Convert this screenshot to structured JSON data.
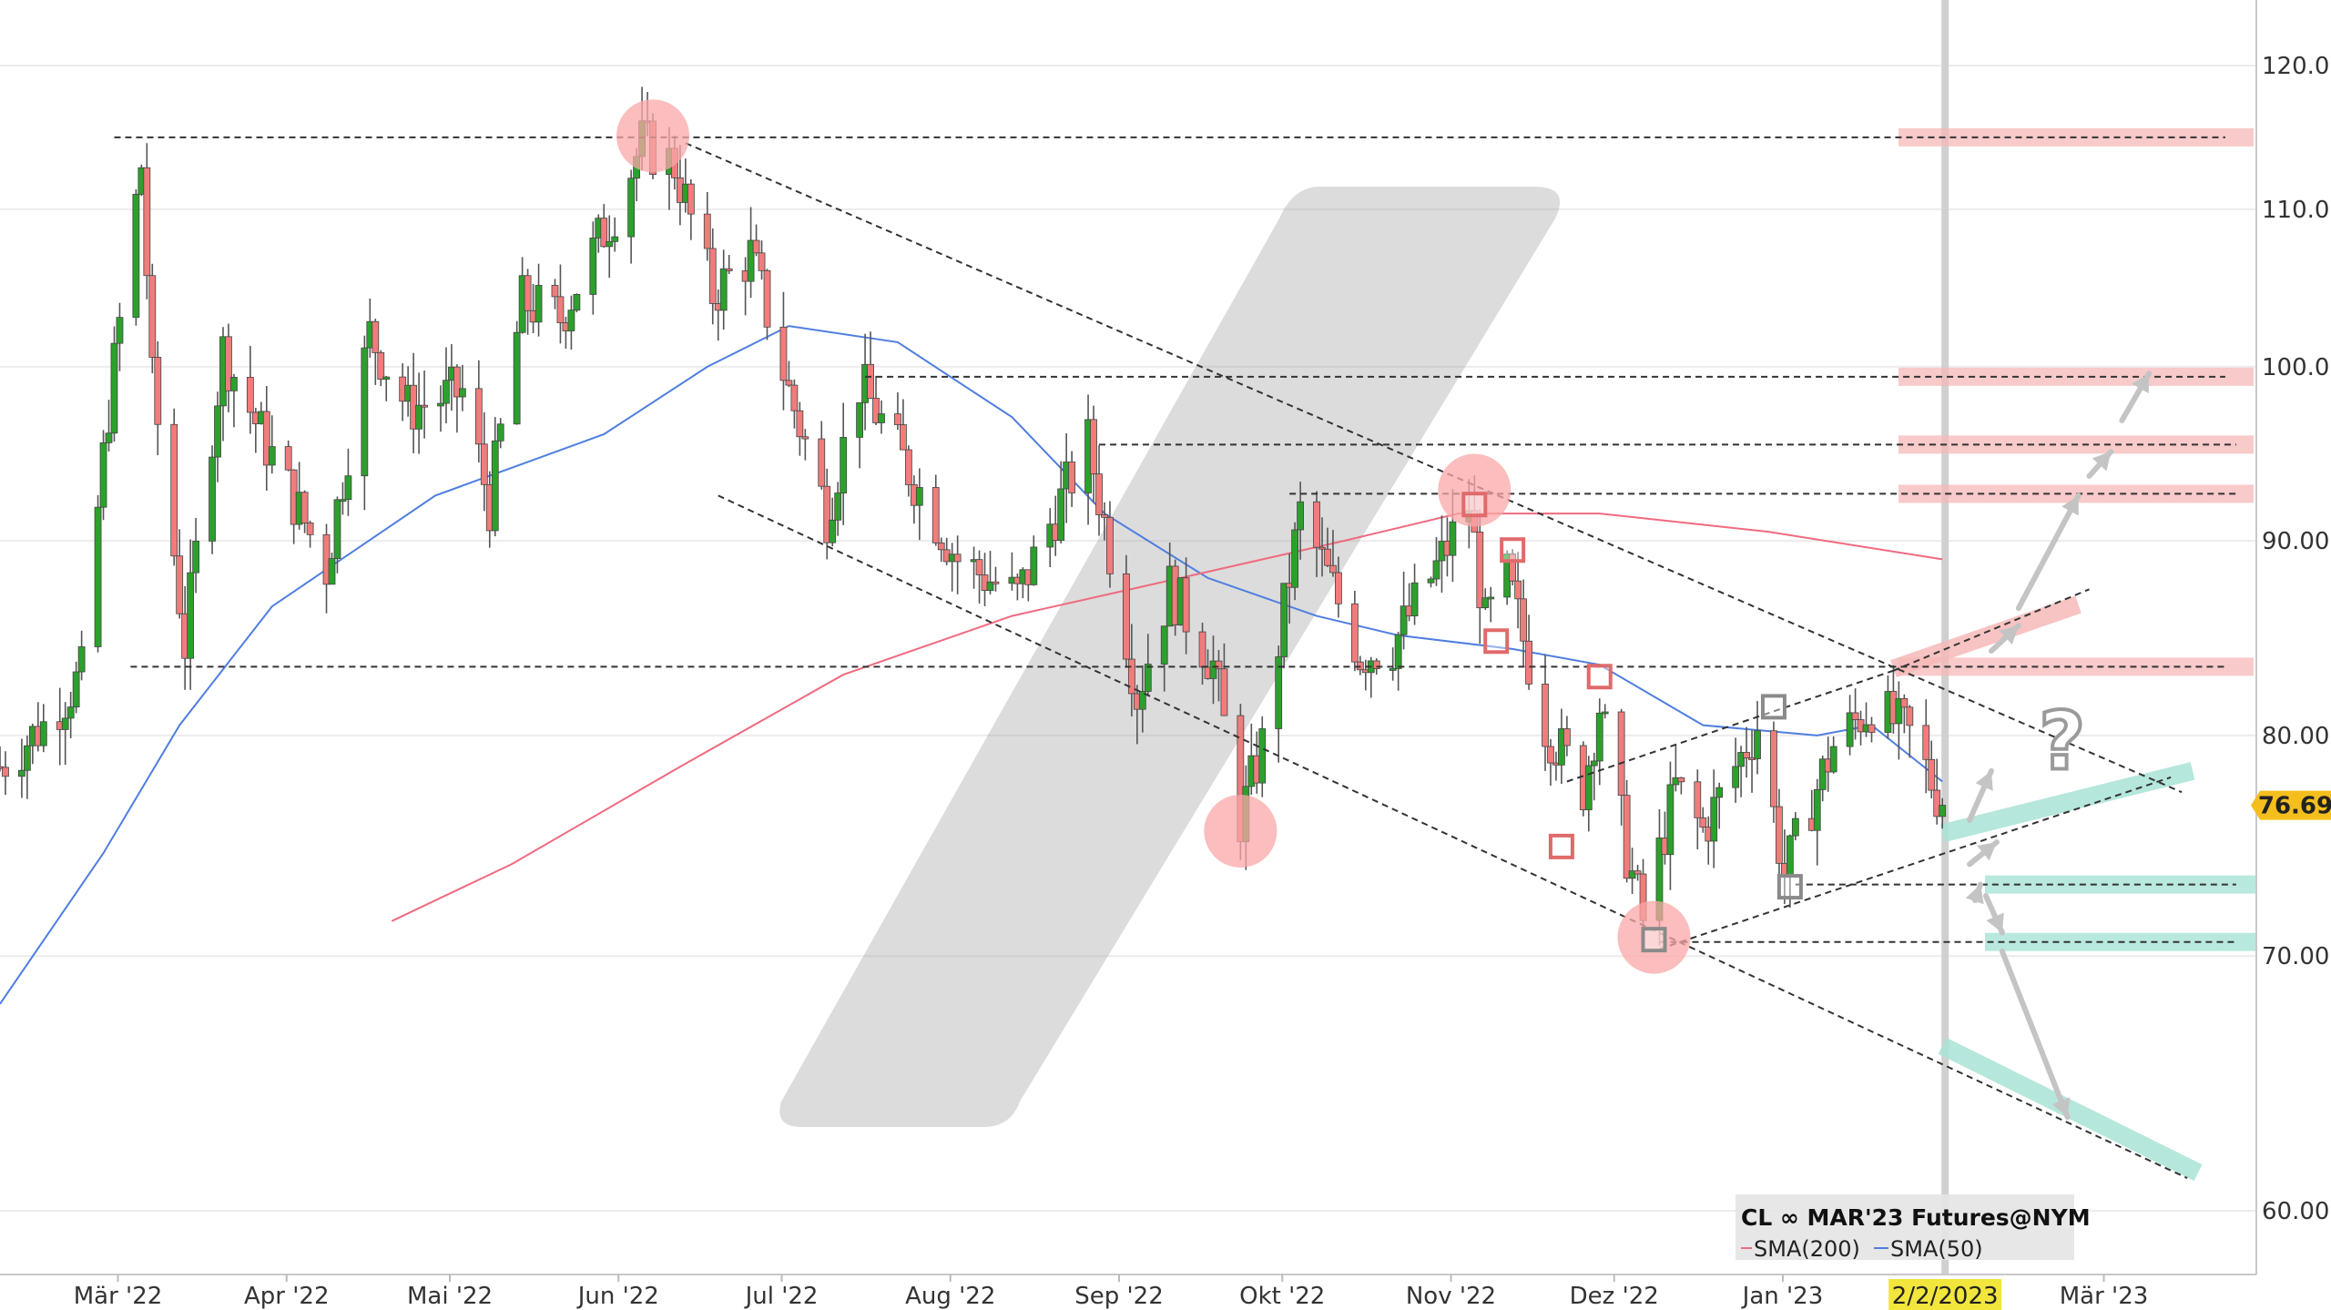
{
  "chart_data": {
    "type": "candlestick",
    "instrument": "CL ∞ MAR'23 Futures@NYM",
    "y_scale": "log",
    "ylim": [
      57.5,
      125
    ],
    "y_ticks": [
      {
        "value": 120,
        "label": "120.00"
      },
      {
        "value": 110,
        "label": "110.00"
      },
      {
        "value": 100,
        "label": "100.00"
      },
      {
        "value": 90,
        "label": "90.00"
      },
      {
        "value": 80,
        "label": "80.00"
      },
      {
        "value": 70,
        "label": "70.00"
      },
      {
        "value": 60,
        "label": "60.00"
      }
    ],
    "x_ticks": [
      "Mär '22",
      "Apr '22",
      "Mai '22",
      "Jun '22",
      "Jul '22",
      "Aug '22",
      "Sep '22",
      "Okt '22",
      "Nov '22",
      "Dez '22",
      "Jan '23",
      "Mär '23"
    ],
    "x_range": [
      "2022-02-10",
      "2023-03-22"
    ],
    "current_date": {
      "date": "2023-02-02",
      "label": "2/2/2023",
      "highlight_color": "#f2e63c"
    },
    "last_price": {
      "value": 76.69,
      "label": "76.69",
      "color": "#f4bf1d"
    },
    "colors": {
      "up": "#2ca02c",
      "down": "#f07c7c",
      "sma200": "#f06a80",
      "sma50": "#4f7ee0",
      "resistance_zone": "#f6b8b8",
      "support_zone": "#a8e3d6",
      "pivot": "#f9a7a7"
    },
    "legend": {
      "items": [
        {
          "name": "SMA(200)",
          "color": "#f06a80"
        },
        {
          "name": "SMA(50)",
          "color": "#4f7ee0"
        }
      ]
    },
    "anchors": [
      [
        "2022-02-10",
        78.5
      ],
      [
        "2022-02-18",
        80.5
      ],
      [
        "2022-02-25",
        83.0
      ],
      [
        "2022-03-02",
        97.5
      ],
      [
        "2022-03-08",
        113.0
      ],
      [
        "2022-03-10",
        99.0
      ],
      [
        "2022-03-16",
        84.5
      ],
      [
        "2022-03-23",
        101.0
      ],
      [
        "2022-03-30",
        96.0
      ],
      [
        "2022-04-11",
        88.5
      ],
      [
        "2022-04-19",
        102.0
      ],
      [
        "2022-04-26",
        97.5
      ],
      [
        "2022-05-06",
        98.5
      ],
      [
        "2022-05-11",
        92.0
      ],
      [
        "2022-05-17",
        104.0
      ],
      [
        "2022-05-24",
        103.0
      ],
      [
        "2022-06-03",
        110.0
      ],
      [
        "2022-06-08",
        114.5
      ],
      [
        "2022-06-14",
        113.0
      ],
      [
        "2022-06-21",
        104.5
      ],
      [
        "2022-06-28",
        107.0
      ],
      [
        "2022-07-05",
        98.5
      ],
      [
        "2022-07-12",
        91.5
      ],
      [
        "2022-07-18",
        99.0
      ],
      [
        "2022-07-26",
        94.5
      ],
      [
        "2022-08-05",
        89.0
      ],
      [
        "2022-08-16",
        87.0
      ],
      [
        "2022-08-29",
        95.5
      ],
      [
        "2022-09-07",
        82.0
      ],
      [
        "2022-09-13",
        87.5
      ],
      [
        "2022-09-21",
        83.5
      ],
      [
        "2022-09-26",
        76.0
      ],
      [
        "2022-09-30",
        79.5
      ],
      [
        "2022-10-07",
        91.5
      ],
      [
        "2022-10-18",
        84.0
      ],
      [
        "2022-10-24",
        84.5
      ],
      [
        "2022-11-01",
        88.5
      ],
      [
        "2022-11-07",
        92.0
      ],
      [
        "2022-11-10",
        85.5
      ],
      [
        "2022-11-14",
        88.0
      ],
      [
        "2022-11-21",
        80.5
      ],
      [
        "2022-11-28",
        77.5
      ],
      [
        "2022-12-01",
        81.5
      ],
      [
        "2022-12-06",
        74.5
      ],
      [
        "2022-12-09",
        71.5
      ],
      [
        "2022-12-15",
        77.5
      ],
      [
        "2022-12-20",
        75.5
      ],
      [
        "2022-12-30",
        80.5
      ],
      [
        "2023-01-04",
        73.5
      ],
      [
        "2023-01-13",
        79.5
      ],
      [
        "2023-01-20",
        81.5
      ],
      [
        "2023-01-27",
        80.0
      ],
      [
        "2023-02-02",
        76.7
      ]
    ],
    "sma50": [
      [
        "2022-02-10",
        68.0
      ],
      [
        "2022-03-01",
        74.5
      ],
      [
        "2022-03-15",
        80.5
      ],
      [
        "2022-04-01",
        86.5
      ],
      [
        "2022-05-01",
        92.5
      ],
      [
        "2022-06-01",
        96.0
      ],
      [
        "2022-06-20",
        100.0
      ],
      [
        "2022-07-05",
        102.5
      ],
      [
        "2022-07-25",
        101.5
      ],
      [
        "2022-08-15",
        97.0
      ],
      [
        "2022-09-01",
        91.5
      ],
      [
        "2022-09-20",
        88.0
      ],
      [
        "2022-10-10",
        86.0
      ],
      [
        "2022-10-25",
        85.0
      ],
      [
        "2022-11-15",
        84.3
      ],
      [
        "2022-12-01",
        83.5
      ],
      [
        "2022-12-20",
        80.5
      ],
      [
        "2023-01-10",
        80.0
      ],
      [
        "2023-01-20",
        80.5
      ],
      [
        "2023-02-02",
        77.8
      ]
    ],
    "sma200": [
      [
        "2022-04-23",
        71.5
      ],
      [
        "2022-05-15",
        74.0
      ],
      [
        "2022-06-15",
        78.5
      ],
      [
        "2022-07-15",
        83.0
      ],
      [
        "2022-08-15",
        86.0
      ],
      [
        "2022-09-15",
        88.0
      ],
      [
        "2022-10-15",
        90.0
      ],
      [
        "2022-11-05",
        91.5
      ],
      [
        "2022-12-01",
        91.5
      ],
      [
        "2023-01-01",
        90.5
      ],
      [
        "2023-02-02",
        89.0
      ]
    ],
    "horizontal_levels": [
      {
        "from": "2022-03-03",
        "to": "2023-03-26",
        "value": 114.9,
        "zone": "resistance"
      },
      {
        "from": "2022-07-19",
        "to": "2023-03-26",
        "value": 99.4,
        "zone": "resistance"
      },
      {
        "from": "2022-08-31",
        "to": "2023-03-28",
        "value": 95.4,
        "zone": "resistance"
      },
      {
        "from": "2022-10-05",
        "to": "2023-03-28",
        "value": 92.6,
        "zone": "resistance"
      },
      {
        "from": "2022-03-06",
        "to": "2023-03-26",
        "value": 83.4,
        "zone": "resistance"
      },
      {
        "from": "2023-01-06",
        "to": "2023-03-28",
        "value": 73.1,
        "zone": "support"
      },
      {
        "from": "2022-12-12",
        "to": "2023-03-28",
        "value": 70.6,
        "zone": "support"
      }
    ],
    "trendlines": [
      {
        "from": [
          "2022-06-16",
          114.5
        ],
        "to": [
          "2023-03-18",
          77.3
        ]
      },
      {
        "from": [
          "2022-06-22",
          92.5
        ],
        "to": [
          "2023-03-19",
          61.2
        ]
      },
      {
        "from": [
          "2022-11-25",
          77.8
        ],
        "to": [
          "2023-01-24",
          83.2
        ]
      },
      {
        "from": [
          "2022-12-12",
          70.3
        ],
        "to": [
          "2023-03-16",
          78.0
        ]
      },
      {
        "from": [
          "2023-01-24",
          83.2
        ],
        "to": [
          "2023-03-01",
          87.4
        ]
      }
    ],
    "zones_sloped": [
      {
        "from": [
          "2023-01-24",
          83.3
        ],
        "to": [
          "2023-02-27",
          86.6
        ],
        "zone": "resistance"
      },
      {
        "from": [
          "2023-02-02",
          75.4
        ],
        "to": [
          "2023-03-20",
          78.3
        ],
        "zone": "support"
      },
      {
        "from": [
          "2023-02-02",
          66.3
        ],
        "to": [
          "2023-03-21",
          61.4
        ],
        "zone": "support"
      }
    ],
    "pivot_circles": [
      [
        "2022-06-10",
        115.0
      ],
      [
        "2022-09-26",
        75.5
      ],
      [
        "2022-11-08",
        92.8
      ],
      [
        "2022-12-11",
        70.8
      ]
    ],
    "pivot_squares": [
      {
        "date": "2022-11-08",
        "value": 92.0,
        "color": "#e06a6a"
      },
      {
        "date": "2022-11-15",
        "value": 89.5,
        "color": "#e06a6a"
      },
      {
        "date": "2022-11-12",
        "value": 84.7,
        "color": "#e06a6a"
      },
      {
        "date": "2022-12-01",
        "value": 82.9,
        "color": "#e06a6a"
      },
      {
        "date": "2022-11-24",
        "value": 74.8,
        "color": "#e06a6a"
      },
      {
        "date": "2022-12-11",
        "value": 70.7,
        "color": "#8a8a8a"
      },
      {
        "date": "2023-01-05",
        "value": 73.0,
        "color": "#8a8a8a"
      },
      {
        "date": "2023-01-02",
        "value": 81.4,
        "color": "#8a8a8a"
      }
    ],
    "scenario_arrows": [
      [
        [
          "2023-02-07",
          76.0
        ],
        [
          "2023-02-11",
          78.3
        ]
      ],
      [
        [
          "2023-02-07",
          74.0
        ],
        [
          "2023-02-12",
          75.0
        ]
      ],
      [
        [
          "2023-02-08",
          72.4
        ],
        [
          "2023-02-09",
          73.1
        ]
      ],
      [
        [
          "2023-02-10",
          72.6
        ],
        [
          "2023-02-13",
          71.0
        ]
      ],
      [
        [
          "2023-02-13",
          70.2
        ],
        [
          "2023-02-25",
          63.5
        ]
      ],
      [
        [
          "2023-02-11",
          84.2
        ],
        [
          "2023-02-16",
          85.5
        ]
      ],
      [
        [
          "2023-02-16",
          86.4
        ],
        [
          "2023-02-27",
          92.5
        ]
      ],
      [
        [
          "2023-03-01",
          93.6
        ],
        [
          "2023-03-05",
          95.0
        ]
      ],
      [
        [
          "2023-03-07",
          96.8
        ],
        [
          "2023-03-12",
          99.6
        ]
      ]
    ],
    "annotations": [
      {
        "text": "?",
        "date": "2023-02-24",
        "value": 79.7
      }
    ]
  }
}
